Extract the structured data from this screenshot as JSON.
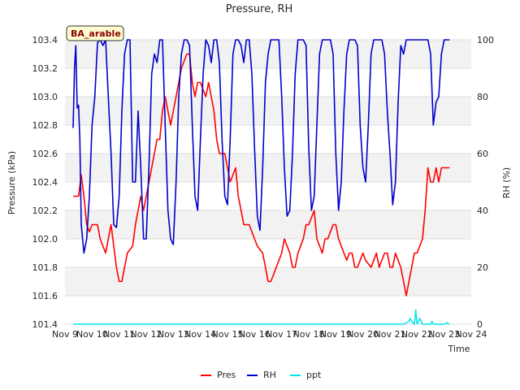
{
  "chart_data": {
    "type": "line",
    "title": "Pressure, RH",
    "site_label": "BA_arable",
    "xlabel": "Time",
    "ylabel_left": "Pressure (kPa)",
    "ylabel_right": "RH (%)",
    "ylim_left": [
      101.4,
      103.4
    ],
    "ylim_right": [
      0,
      100
    ],
    "xlim": [
      9,
      24
    ],
    "x_ticks": [
      9,
      10,
      11,
      12,
      13,
      14,
      15,
      16,
      17,
      18,
      19,
      20,
      21,
      22,
      23,
      24
    ],
    "x_tick_labels": [
      "Nov 9",
      "Nov 10",
      "Nov 11",
      "Nov 12",
      "Nov 13",
      "Nov 14",
      "Nov 15",
      "Nov 16",
      "Nov 17",
      "Nov 18",
      "Nov 19",
      "Nov 20",
      "Nov 21",
      "Nov 22",
      "Nov 23",
      "Nov 24"
    ],
    "y_left_ticks": [
      101.4,
      101.6,
      101.8,
      102.0,
      102.2,
      102.4,
      102.6,
      102.8,
      103.0,
      103.2,
      103.4
    ],
    "y_left_tick_labels": [
      "101.4",
      "101.6",
      "101.8",
      "102.0",
      "102.2",
      "102.4",
      "102.6",
      "102.8",
      "103.0",
      "103.2",
      "103.4"
    ],
    "y_right_ticks": [
      0,
      20,
      40,
      60,
      80,
      100
    ],
    "y_right_tick_labels": [
      "0",
      "20",
      "40",
      "60",
      "80",
      "100"
    ],
    "grid": "horizontal bands",
    "legend_position": "bottom-center",
    "colors": {
      "Pres": "#ff0000",
      "RH": "#0000cc",
      "ppt": "#00e5ee"
    },
    "series": [
      {
        "name": "Pres",
        "axis": "left",
        "x": [
          9.3,
          9.5,
          9.6,
          9.7,
          9.8,
          9.9,
          10.0,
          10.1,
          10.2,
          10.3,
          10.5,
          10.6,
          10.7,
          10.8,
          10.9,
          11.0,
          11.1,
          11.2,
          11.3,
          11.5,
          11.6,
          11.8,
          11.9,
          12.0,
          12.1,
          12.2,
          12.3,
          12.4,
          12.5,
          12.6,
          12.7,
          12.8,
          12.9,
          13.0,
          13.1,
          13.2,
          13.3,
          13.5,
          13.6,
          13.7,
          13.8,
          13.9,
          14.0,
          14.2,
          14.3,
          14.4,
          14.5,
          14.6,
          14.7,
          14.8,
          14.9,
          15.0,
          15.1,
          15.3,
          15.4,
          15.5,
          15.6,
          15.7,
          15.8,
          15.9,
          16.0,
          16.1,
          16.3,
          16.4,
          16.5,
          16.6,
          16.7,
          16.8,
          16.9,
          17.0,
          17.1,
          17.3,
          17.4,
          17.5,
          17.6,
          17.7,
          17.8,
          17.9,
          18.0,
          18.2,
          18.3,
          18.5,
          18.6,
          18.7,
          18.8,
          18.9,
          19.0,
          19.1,
          19.2,
          19.3,
          19.4,
          19.5,
          19.6,
          19.7,
          19.8,
          19.9,
          20.0,
          20.1,
          20.3,
          20.4,
          20.5,
          20.6,
          20.8,
          20.9,
          21.0,
          21.1,
          21.2,
          21.3,
          21.4,
          21.5,
          21.6,
          21.7,
          21.8,
          21.9,
          22.0,
          22.2,
          22.3,
          22.4,
          22.5,
          22.6,
          22.7,
          22.8,
          22.9,
          23.0,
          23.1,
          23.2
        ],
        "values": [
          102.3,
          102.3,
          102.45,
          102.3,
          102.1,
          102.05,
          102.1,
          102.1,
          102.1,
          102.0,
          101.9,
          102.0,
          102.1,
          101.95,
          101.8,
          101.7,
          101.7,
          101.8,
          101.9,
          101.95,
          102.1,
          102.3,
          102.2,
          102.3,
          102.4,
          102.5,
          102.6,
          102.7,
          102.7,
          102.9,
          103.0,
          102.9,
          102.8,
          102.9,
          103.0,
          103.1,
          103.2,
          103.3,
          103.3,
          103.1,
          103.0,
          103.1,
          103.1,
          103.0,
          103.1,
          103.0,
          102.9,
          102.7,
          102.6,
          102.6,
          102.6,
          102.5,
          102.4,
          102.5,
          102.3,
          102.2,
          102.1,
          102.1,
          102.1,
          102.05,
          102.0,
          101.95,
          101.9,
          101.8,
          101.7,
          101.7,
          101.75,
          101.8,
          101.85,
          101.9,
          102.0,
          101.9,
          101.8,
          101.8,
          101.9,
          101.95,
          102.0,
          102.1,
          102.1,
          102.2,
          102.0,
          101.9,
          102.0,
          102.0,
          102.05,
          102.1,
          102.1,
          102.0,
          101.95,
          101.9,
          101.85,
          101.9,
          101.9,
          101.8,
          101.8,
          101.85,
          101.9,
          101.85,
          101.8,
          101.85,
          101.9,
          101.8,
          101.9,
          101.9,
          101.8,
          101.8,
          101.9,
          101.85,
          101.8,
          101.7,
          101.6,
          101.7,
          101.8,
          101.9,
          101.9,
          102.0,
          102.2,
          102.5,
          102.4,
          102.4,
          102.5,
          102.4,
          102.5,
          102.5,
          102.5,
          102.5
        ],
        "color": "#ff0000"
      },
      {
        "name": "RH",
        "axis": "right",
        "x": [
          9.3,
          9.35,
          9.4,
          9.45,
          9.5,
          9.55,
          9.6,
          9.7,
          9.8,
          9.9,
          10.0,
          10.1,
          10.2,
          10.3,
          10.4,
          10.5,
          10.6,
          10.7,
          10.8,
          10.9,
          11.0,
          11.1,
          11.2,
          11.3,
          11.4,
          11.5,
          11.6,
          11.7,
          11.8,
          11.9,
          12.0,
          12.1,
          12.2,
          12.3,
          12.4,
          12.5,
          12.6,
          12.7,
          12.8,
          12.9,
          13.0,
          13.1,
          13.2,
          13.3,
          13.4,
          13.5,
          13.6,
          13.7,
          13.8,
          13.9,
          14.0,
          14.1,
          14.2,
          14.3,
          14.4,
          14.5,
          14.6,
          14.7,
          14.8,
          14.9,
          15.0,
          15.1,
          15.2,
          15.3,
          15.4,
          15.5,
          15.6,
          15.7,
          15.8,
          15.9,
          16.0,
          16.1,
          16.2,
          16.3,
          16.4,
          16.5,
          16.6,
          16.7,
          16.8,
          16.9,
          17.0,
          17.1,
          17.2,
          17.3,
          17.4,
          17.5,
          17.6,
          17.7,
          17.8,
          17.9,
          18.0,
          18.1,
          18.2,
          18.3,
          18.4,
          18.5,
          18.6,
          18.7,
          18.8,
          18.9,
          19.0,
          19.1,
          19.2,
          19.3,
          19.4,
          19.5,
          19.6,
          19.7,
          19.8,
          19.9,
          20.0,
          20.1,
          20.2,
          20.3,
          20.4,
          20.5,
          20.6,
          20.7,
          20.8,
          20.9,
          21.0,
          21.1,
          21.2,
          21.3,
          21.4,
          21.5,
          21.6,
          21.7,
          21.8,
          21.9,
          22.0,
          22.1,
          22.2,
          22.3,
          22.4,
          22.5,
          22.6,
          22.7,
          22.8,
          22.9,
          23.0,
          23.1,
          23.2
        ],
        "values": [
          69,
          90,
          98,
          76,
          77,
          65,
          35,
          25,
          30,
          45,
          70,
          80,
          99,
          100,
          98,
          100,
          80,
          60,
          35,
          34,
          45,
          75,
          95,
          100,
          100,
          50,
          50,
          75,
          55,
          30,
          30,
          55,
          88,
          95,
          92,
          100,
          100,
          70,
          40,
          30,
          28,
          50,
          80,
          95,
          100,
          100,
          98,
          70,
          45,
          40,
          65,
          88,
          100,
          98,
          92,
          100,
          100,
          92,
          65,
          45,
          42,
          65,
          95,
          100,
          100,
          98,
          92,
          100,
          100,
          88,
          62,
          38,
          33,
          55,
          85,
          95,
          100,
          100,
          100,
          100,
          80,
          55,
          38,
          40,
          60,
          88,
          100,
          100,
          100,
          98,
          62,
          40,
          45,
          70,
          95,
          100,
          100,
          100,
          100,
          95,
          60,
          40,
          50,
          75,
          95,
          100,
          100,
          100,
          98,
          70,
          55,
          50,
          70,
          95,
          100,
          100,
          100,
          100,
          95,
          75,
          60,
          42,
          50,
          78,
          98,
          95,
          100,
          100,
          100,
          100,
          100,
          100,
          100,
          100,
          100,
          95,
          70,
          78,
          80,
          95,
          100,
          100,
          100
        ],
        "color": "#0000cc"
      },
      {
        "name": "ppt",
        "axis": "right",
        "x": [
          9.3,
          21.0,
          21.5,
          21.7,
          21.75,
          21.8,
          21.9,
          21.95,
          22.0,
          22.1,
          22.2,
          22.5,
          22.55,
          22.6,
          23.0,
          23.1,
          23.2
        ],
        "values": [
          0,
          0,
          0,
          1,
          2,
          1,
          0,
          5,
          0,
          2,
          0,
          0,
          1,
          0,
          0,
          0.5,
          0
        ],
        "color": "#00e5ee"
      }
    ]
  }
}
